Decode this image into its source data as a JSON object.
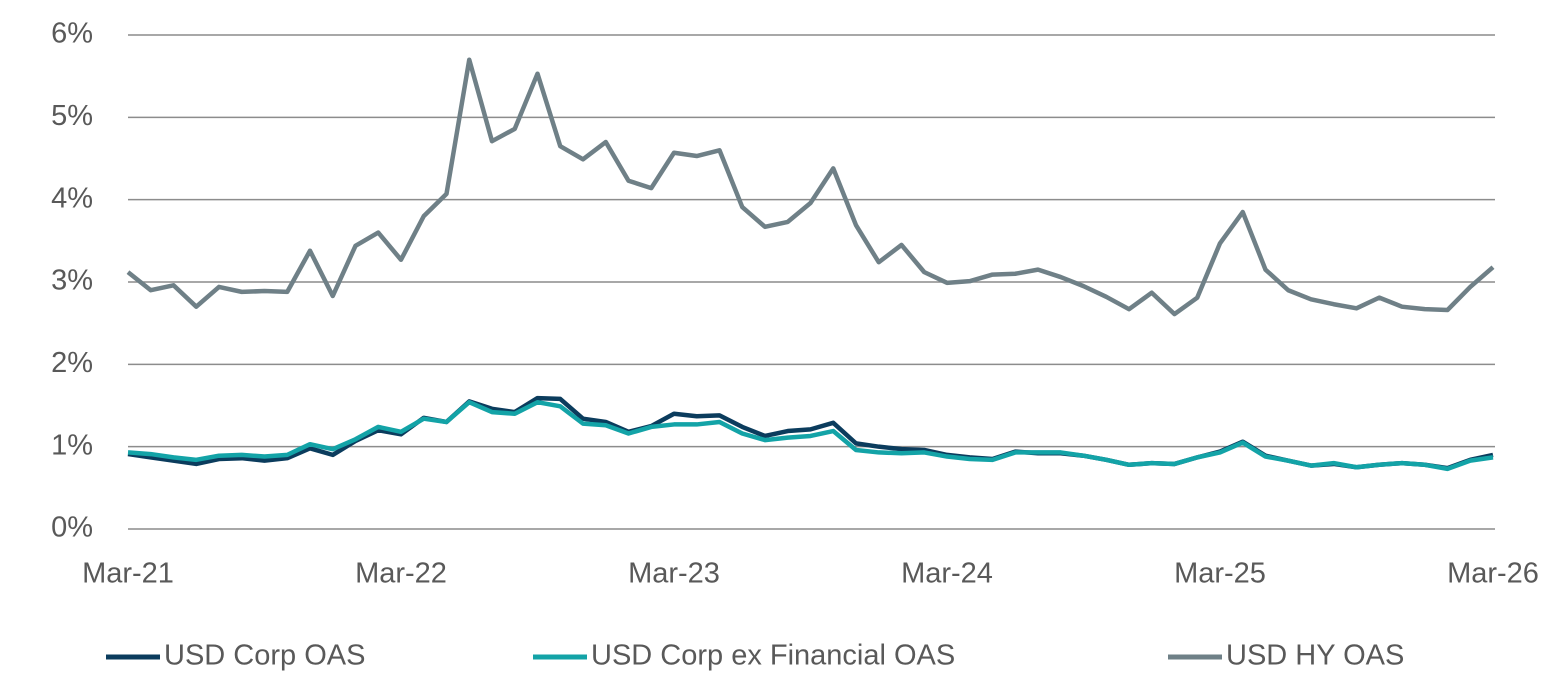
{
  "chart_data": {
    "type": "line",
    "categories": [
      "Mar-21",
      null,
      null,
      null,
      null,
      null,
      null,
      null,
      null,
      null,
      null,
      null,
      "Mar-22",
      null,
      null,
      null,
      null,
      null,
      null,
      null,
      null,
      null,
      null,
      null,
      "Mar-23",
      null,
      null,
      null,
      null,
      null,
      null,
      null,
      null,
      null,
      null,
      null,
      "Mar-24",
      null,
      null,
      null,
      null,
      null,
      null,
      null,
      null,
      null,
      null,
      null,
      "Mar-25",
      null,
      null,
      null,
      null,
      null,
      null,
      null,
      null,
      null,
      null,
      null,
      "Mar-26"
    ],
    "series": [
      {
        "name": "USD Corp OAS",
        "color": "#0b3c5d",
        "values": [
          0.91,
          0.87,
          0.83,
          0.79,
          0.85,
          0.86,
          0.83,
          0.86,
          0.98,
          0.9,
          1.07,
          1.2,
          1.15,
          1.35,
          1.3,
          1.55,
          1.46,
          1.42,
          1.59,
          1.58,
          1.34,
          1.3,
          1.18,
          1.25,
          1.4,
          1.37,
          1.38,
          1.24,
          1.13,
          1.19,
          1.21,
          1.29,
          1.04,
          1.0,
          0.97,
          0.96,
          0.9,
          0.87,
          0.85,
          0.94,
          0.92,
          0.92,
          0.89,
          0.84,
          0.78,
          0.8,
          0.79,
          0.87,
          0.94,
          1.06,
          0.89,
          0.83,
          0.77,
          0.79,
          0.75,
          0.78,
          0.8,
          0.78,
          0.74,
          0.84,
          0.9
        ]
      },
      {
        "name": "USD Corp ex Financial OAS",
        "color": "#13a3a7",
        "values": [
          0.93,
          0.91,
          0.87,
          0.84,
          0.89,
          0.9,
          0.88,
          0.9,
          1.03,
          0.97,
          1.09,
          1.24,
          1.18,
          1.34,
          1.3,
          1.54,
          1.42,
          1.4,
          1.54,
          1.49,
          1.28,
          1.26,
          1.16,
          1.24,
          1.27,
          1.27,
          1.3,
          1.16,
          1.08,
          1.11,
          1.13,
          1.19,
          0.96,
          0.93,
          0.92,
          0.93,
          0.88,
          0.85,
          0.84,
          0.93,
          0.93,
          0.93,
          0.89,
          0.84,
          0.78,
          0.8,
          0.79,
          0.87,
          0.93,
          1.05,
          0.88,
          0.83,
          0.77,
          0.8,
          0.75,
          0.78,
          0.8,
          0.78,
          0.73,
          0.83,
          0.87
        ]
      },
      {
        "name": "USD HY OAS",
        "color": "#6f8087",
        "values": [
          3.12,
          2.9,
          2.96,
          2.7,
          2.94,
          2.88,
          2.89,
          2.88,
          3.38,
          2.83,
          3.44,
          3.6,
          3.27,
          3.8,
          4.07,
          5.7,
          4.71,
          4.86,
          5.53,
          4.65,
          4.49,
          4.7,
          4.23,
          4.14,
          4.57,
          4.53,
          4.6,
          3.91,
          3.67,
          3.73,
          3.96,
          4.38,
          3.69,
          3.24,
          3.45,
          3.12,
          2.99,
          3.01,
          3.09,
          3.1,
          3.15,
          3.06,
          2.95,
          2.82,
          2.67,
          2.87,
          2.61,
          2.81,
          3.47,
          3.85,
          3.15,
          2.9,
          2.79,
          2.73,
          2.68,
          2.81,
          2.7,
          2.67,
          2.66,
          2.94,
          3.18
        ]
      }
    ],
    "ylim": [
      0,
      6
    ],
    "yticks": [
      {
        "value": 0,
        "label": "0%"
      },
      {
        "value": 1,
        "label": "1%"
      },
      {
        "value": 2,
        "label": "2%"
      },
      {
        "value": 3,
        "label": "3%"
      },
      {
        "value": 4,
        "label": "4%"
      },
      {
        "value": 5,
        "label": "5%"
      },
      {
        "value": 6,
        "label": "6%"
      }
    ],
    "grid": true,
    "legend": "bottom"
  }
}
